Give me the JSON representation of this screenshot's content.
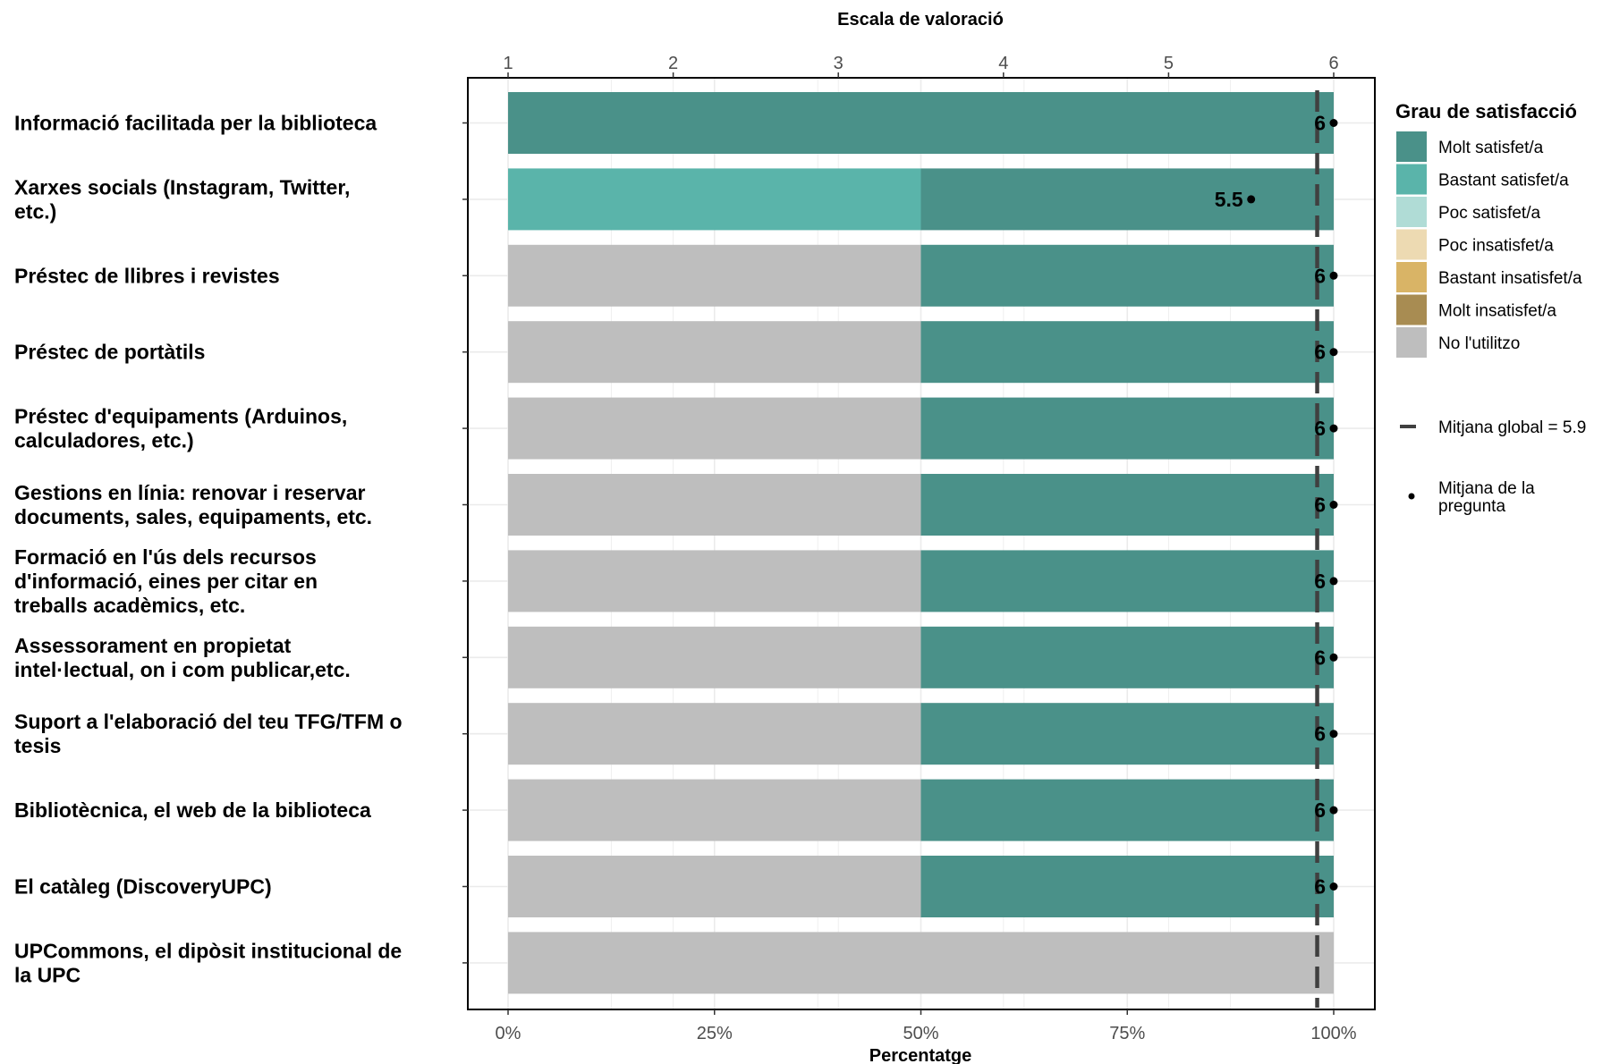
{
  "chart_data": {
    "type": "bar",
    "orientation": "horizontal",
    "stacked": true,
    "top_axis": {
      "title": "Escala de valoració",
      "range": [
        1,
        6
      ],
      "ticks": [
        "1",
        "2",
        "3",
        "4",
        "5",
        "6"
      ]
    },
    "bottom_axis": {
      "title": "Percentatge",
      "range": [
        0,
        100
      ],
      "ticks": [
        "0%",
        "25%",
        "50%",
        "75%",
        "100%"
      ]
    },
    "categories": [
      "Informació facilitada per la biblioteca",
      "Xarxes socials (Instagram, Twitter, etc.)",
      "Préstec de llibres i revistes",
      "Préstec de portàtils",
      "Préstec d'equipaments (Arduinos, calculadores, etc.)",
      "Gestions en línia: renovar i reservar documents, sales, equipaments, etc.",
      "Formació en l'ús dels recursos d'informació, eines per citar en treballs acadèmics, etc.",
      "Assessorament en propietat intel·lectual, on i com publicar,etc.",
      "Suport a l'elaboració del teu TFG/TFM o tesis",
      "Bibliotècnica, el web de la biblioteca",
      "El catàleg (DiscoveryUPC)",
      "UPCommons, el dipòsit institucional de la UPC"
    ],
    "category_lines": [
      [
        "Informació facilitada per la biblioteca"
      ],
      [
        "Xarxes socials (Instagram, Twitter,",
        "etc.)"
      ],
      [
        "Préstec de llibres i revistes"
      ],
      [
        "Préstec de portàtils"
      ],
      [
        "Préstec d'equipaments (Arduinos,",
        "calculadores, etc.)"
      ],
      [
        "Gestions en línia: renovar i reservar",
        "documents, sales, equipaments, etc."
      ],
      [
        "Formació en l'ús dels recursos",
        "d'informació, eines per citar en",
        "treballs acadèmics, etc."
      ],
      [
        "Assessorament en propietat",
        "intel·lectual, on i com publicar,etc."
      ],
      [
        "Suport a l'elaboració del teu TFG/TFM o",
        "tesis"
      ],
      [
        "Bibliotècnica, el web de la biblioteca"
      ],
      [
        "El catàleg (DiscoveryUPC)"
      ],
      [
        "UPCommons, el dipòsit institucional de",
        "la UPC"
      ]
    ],
    "series": [
      {
        "name": "Molt satisfet/a",
        "color": "#4a9189",
        "values": [
          100,
          50,
          50,
          50,
          50,
          50,
          50,
          50,
          50,
          50,
          50,
          0
        ]
      },
      {
        "name": "Bastant satisfet/a",
        "color": "#5ab4aa",
        "values": [
          0,
          50,
          0,
          0,
          0,
          0,
          0,
          0,
          0,
          0,
          0,
          0
        ]
      },
      {
        "name": "Poc satisfet/a",
        "color": "#b0dcd6",
        "values": [
          0,
          0,
          0,
          0,
          0,
          0,
          0,
          0,
          0,
          0,
          0,
          0
        ]
      },
      {
        "name": "Poc insatisfet/a",
        "color": "#eddab2",
        "values": [
          0,
          0,
          0,
          0,
          0,
          0,
          0,
          0,
          0,
          0,
          0,
          0
        ]
      },
      {
        "name": "Bastant insatisfet/a",
        "color": "#d9b466",
        "values": [
          0,
          0,
          0,
          0,
          0,
          0,
          0,
          0,
          0,
          0,
          0,
          0
        ]
      },
      {
        "name": "Molt insatisfet/a",
        "color": "#a88c52",
        "values": [
          0,
          0,
          0,
          0,
          0,
          0,
          0,
          0,
          0,
          0,
          0,
          0
        ]
      },
      {
        "name": "No l'utilitzo",
        "color": "#bebebe",
        "values": [
          0,
          0,
          50,
          50,
          50,
          50,
          50,
          50,
          50,
          50,
          50,
          100
        ]
      }
    ],
    "stack_order_left_to_right": [
      "No l'utilitzo",
      "Molt insatisfet/a",
      "Bastant insatisfet/a",
      "Poc insatisfet/a",
      "Poc satisfet/a",
      "Bastant satisfet/a",
      "Molt satisfet/a"
    ],
    "question_means": [
      6,
      5.5,
      6,
      6,
      6,
      6,
      6,
      6,
      6,
      6,
      6,
      null
    ],
    "question_mean_labels": [
      "6",
      "5.5",
      "6",
      "6",
      "6",
      "6",
      "6",
      "6",
      "6",
      "6",
      "6",
      ""
    ],
    "global_mean": 5.9,
    "legend": {
      "title": "Grau de satisfacció",
      "position": "right",
      "global_mean_label": "Mitjana global =  5.9",
      "question_mean_label_lines": [
        "Mitjana de la",
        "pregunta"
      ]
    },
    "colors": {
      "global_mean_line": "#404040",
      "point": "#000000",
      "grid": "#ebebeb",
      "panel_border": "#000000"
    },
    "grid": true
  }
}
